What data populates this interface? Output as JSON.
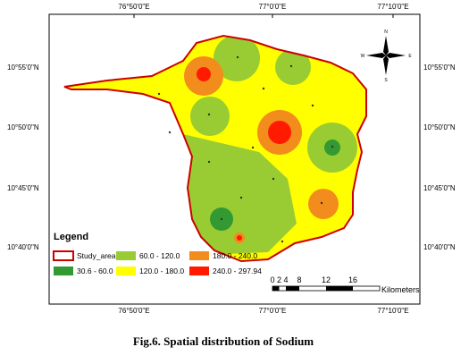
{
  "map": {
    "top_labels": [
      "76°50'0\"E",
      "77°0'0\"E",
      "77°10'0\"E"
    ],
    "bottom_labels": [
      "76°50'0\"E",
      "77°0'0\"E",
      "77°10'0\"E"
    ],
    "left_labels": [
      "10°55'0\"N",
      "10°50'0\"N",
      "10°45'0\"N",
      "10°40'0\"N"
    ],
    "right_labels": [
      "10°55'0\"N",
      "10°50'0\"N",
      "10°45'0\"N",
      "10°40'0\"N"
    ],
    "compass": {
      "n": "N",
      "s": "S",
      "e": "E",
      "w": "W"
    },
    "legend": {
      "title": "Legend",
      "items": [
        "Study_area",
        "30.6 - 60.0",
        "60.0 - 120.0",
        "120.0 - 180.0",
        "180.0 - 240.0",
        "240.0 - 297.94"
      ]
    },
    "scale": {
      "labels": [
        "0",
        "2",
        "4",
        "8",
        "12",
        "16"
      ],
      "unit": "Kilometers"
    },
    "caption": "Fig.6. Spatial distribution of Sodium"
  }
}
